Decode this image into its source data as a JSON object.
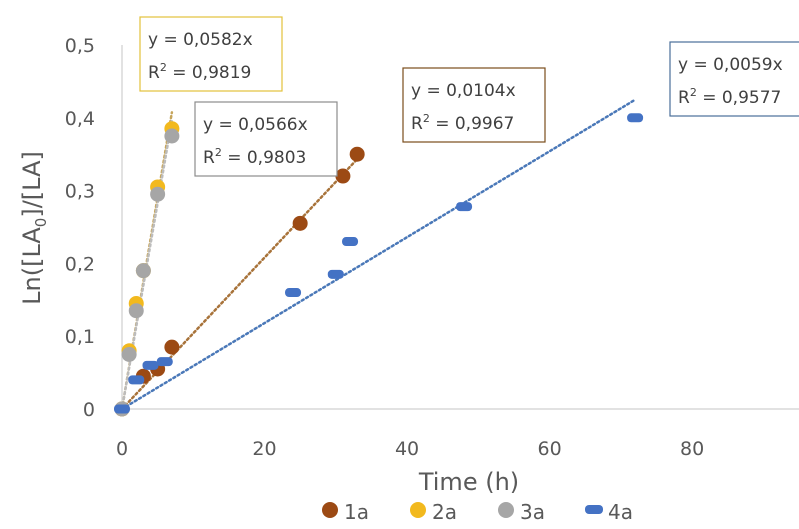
{
  "chart_data": {
    "type": "scatter",
    "xlabel": "Time (h)",
    "ylabel_parts": {
      "pre": "Ln([LA",
      "sub": "0",
      "post": "]/[LA]"
    },
    "xlim": [
      0,
      95
    ],
    "ylim": [
      0,
      0.5
    ],
    "x_ticks": [
      0,
      20,
      40,
      60,
      80
    ],
    "x_tick_labels": [
      "0",
      "20",
      "40",
      "60",
      "80"
    ],
    "y_ticks": [
      0,
      0.1,
      0.2,
      0.3,
      0.4,
      0.5
    ],
    "y_tick_labels": [
      "0",
      "0,1",
      "0,2",
      "0,3",
      "0,4",
      "0,5"
    ],
    "grid": false,
    "legend_position": "bottom",
    "series": [
      {
        "name": "1a",
        "color": "#9c4a14",
        "marker": "circle",
        "x": [
          0,
          3,
          5,
          7,
          25,
          31,
          33
        ],
        "y": [
          0,
          0.045,
          0.055,
          0.085,
          0.255,
          0.32,
          0.35
        ],
        "trendline": {
          "slope": 0.0104,
          "x_end": 33,
          "color": "#a8733a"
        },
        "annotation": {
          "equation": "y = 0,0104x",
          "r2_prefix": "R",
          "r2_sup": "2",
          "r2_value": " = 0,9967",
          "border": "#7a4d1c"
        }
      },
      {
        "name": "2a",
        "color": "#f2b91e",
        "marker": "circle",
        "x": [
          0,
          1,
          2,
          3,
          5,
          7
        ],
        "y": [
          0,
          0.08,
          0.145,
          0.19,
          0.305,
          0.385
        ],
        "trendline": {
          "slope": 0.0582,
          "x_end": 7,
          "color": "#c6a55c"
        },
        "annotation": {
          "equation": "y = 0,0582x",
          "r2_prefix": "R",
          "r2_sup": "2",
          "r2_value": " = 0,9819",
          "border": "#e3c13b"
        }
      },
      {
        "name": "3a",
        "color": "#a6a6a6",
        "marker": "circle",
        "x": [
          0,
          1,
          2,
          3,
          5,
          7
        ],
        "y": [
          0,
          0.075,
          0.135,
          0.19,
          0.295,
          0.375
        ],
        "trendline": {
          "slope": 0.0566,
          "x_end": 7,
          "color": "#bcbcbc"
        },
        "annotation": {
          "equation": "y = 0,0566x",
          "r2_prefix": "R",
          "r2_sup": "2",
          "r2_value": " = 0,9803",
          "border": "#8c8c8c"
        }
      },
      {
        "name": "4a",
        "color": "#4472c4",
        "marker": "dash",
        "x": [
          0,
          2,
          4,
          6,
          24,
          30,
          32,
          48,
          72
        ],
        "y": [
          0,
          0.04,
          0.06,
          0.065,
          0.16,
          0.185,
          0.23,
          0.278,
          0.4
        ],
        "trendline": {
          "slope": 0.0059,
          "x_end": 72,
          "color": "#4a78b8"
        },
        "annotation": {
          "equation": "y = 0,0059x",
          "r2_prefix": "R",
          "r2_sup": "2",
          "r2_value": " = 0,9577",
          "border": "#4a6f99"
        }
      }
    ]
  }
}
